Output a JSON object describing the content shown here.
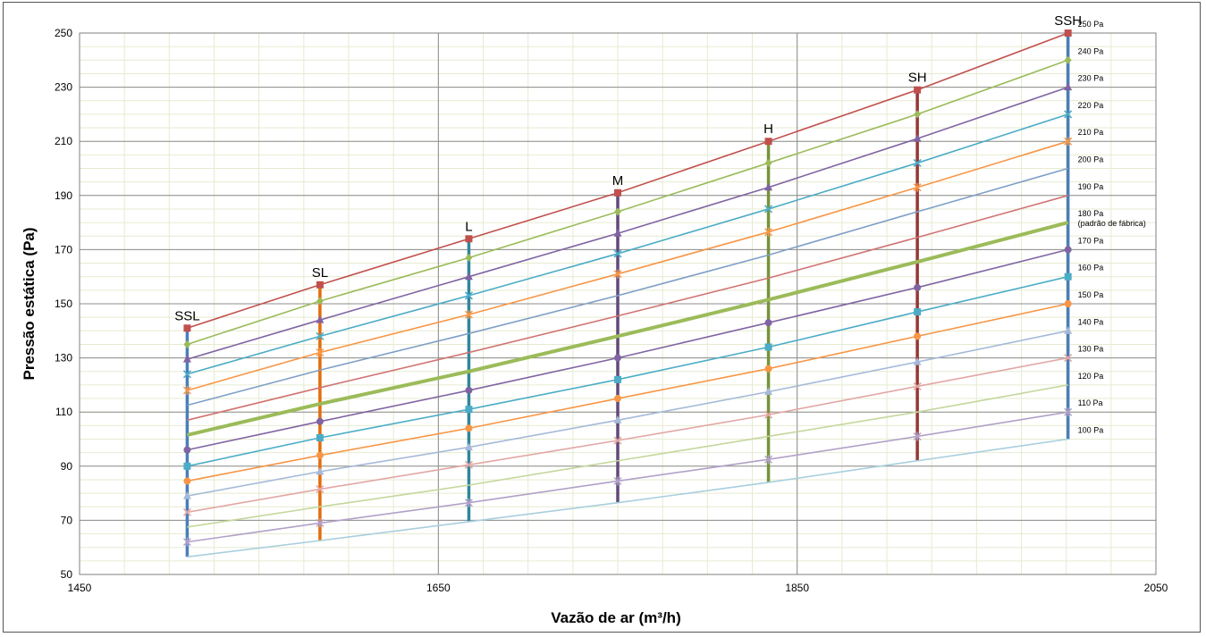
{
  "chart_data": {
    "type": "line",
    "xlabel": "Vazão de ar (m³/h)",
    "ylabel": "Pressão estática (Pa)",
    "xlim": [
      1450,
      2050
    ],
    "ylim": [
      50,
      250
    ],
    "x_ticks": [
      "1450",
      "1650",
      "1850",
      "2050"
    ],
    "y_ticks": [
      "50",
      "70",
      "90",
      "110",
      "130",
      "150",
      "170",
      "190",
      "210",
      "230",
      "250"
    ],
    "grid": true,
    "speed_steps": [
      {
        "name": "SSL",
        "x": 1510,
        "color": "#4a7ebb",
        "show_label": true
      },
      {
        "name": "SL",
        "x": 1584,
        "color": "#e46c0a",
        "show_label": true
      },
      {
        "name": "L",
        "x": 1667,
        "color": "#31859c",
        "show_label": true
      },
      {
        "name": "M",
        "x": 1750,
        "color": "#604a7b",
        "show_label": true
      },
      {
        "name": "H",
        "x": 1834,
        "color": "#77933c",
        "show_label": true
      },
      {
        "name": "SH",
        "x": 1917,
        "color": "#953735",
        "show_label": true
      },
      {
        "name": "SSH",
        "x": 2001,
        "color": "#4a7ebb",
        "show_label": true
      }
    ],
    "series": [
      {
        "name": "250 Pa",
        "color": "#c0504d",
        "marker": "square",
        "width": 1.6,
        "y": [
          141,
          157,
          174,
          191,
          210,
          229,
          250
        ]
      },
      {
        "name": "240 Pa",
        "color": "#9bbb59",
        "marker": "diamond",
        "width": 1.6,
        "y": [
          135,
          151,
          167,
          184,
          202,
          220,
          240
        ]
      },
      {
        "name": "230 Pa",
        "color": "#8064a2",
        "marker": "triangle",
        "width": 1.6,
        "y": [
          129.5,
          144,
          160,
          176,
          193,
          211,
          230
        ]
      },
      {
        "name": "220 Pa",
        "color": "#4bacc6",
        "marker": "x",
        "width": 1.6,
        "y": [
          124,
          138,
          153,
          168.5,
          185,
          202,
          220
        ]
      },
      {
        "name": "210 Pa",
        "color": "#f79646",
        "marker": "star",
        "width": 1.6,
        "y": [
          118,
          132,
          146,
          161,
          176.5,
          193,
          210
        ]
      },
      {
        "name": "200 Pa",
        "color": "#7f9fc6",
        "marker": "none",
        "width": 1.6,
        "y": [
          112.5,
          125.5,
          139,
          153,
          168,
          184,
          200
        ]
      },
      {
        "name": "190 Pa",
        "color": "#d07472",
        "marker": "none",
        "width": 1.6,
        "y": [
          107,
          119,
          132,
          145.5,
          159.5,
          174.5,
          190
        ]
      },
      {
        "name": "180 Pa",
        "name2": "(padrão de fábrica)",
        "color": "#9bbb59",
        "marker": "none",
        "width": 4,
        "y": [
          101.5,
          113,
          125,
          138,
          151.5,
          165.5,
          180
        ]
      },
      {
        "name": "170 Pa",
        "color": "#8064a2",
        "marker": "circle",
        "width": 1.6,
        "y": [
          96,
          106.5,
          118,
          130,
          143,
          156,
          170
        ]
      },
      {
        "name": "160 Pa",
        "color": "#4bacc6",
        "marker": "square",
        "width": 1.6,
        "y": [
          90,
          100.5,
          111,
          122,
          134,
          147,
          160
        ]
      },
      {
        "name": "150 Pa",
        "color": "#f79646",
        "marker": "circle",
        "width": 1.6,
        "y": [
          84.5,
          94,
          104,
          115,
          126,
          138,
          150
        ]
      },
      {
        "name": "140 Pa",
        "color": "#a5b9d8",
        "marker": "triangle",
        "width": 1.6,
        "y": [
          79,
          88,
          97,
          107,
          117.5,
          128.5,
          140
        ]
      },
      {
        "name": "130 Pa",
        "color": "#e2a6a5",
        "marker": "x",
        "width": 1.6,
        "y": [
          73,
          81.5,
          90.5,
          99.5,
          109,
          119.5,
          130
        ]
      },
      {
        "name": "120 Pa",
        "color": "#c4d79b",
        "marker": "none",
        "width": 1.6,
        "y": [
          67.5,
          75,
          83,
          92,
          101,
          110,
          120
        ]
      },
      {
        "name": "110 Pa",
        "color": "#b1a0c7",
        "marker": "star",
        "width": 1.6,
        "y": [
          62,
          69,
          76.5,
          84.5,
          92.5,
          101,
          110
        ]
      },
      {
        "name": "100 Pa",
        "color": "#a8cfde",
        "marker": "none",
        "width": 1.6,
        "y": [
          56.5,
          62.5,
          69.5,
          76.5,
          84,
          92,
          100
        ]
      }
    ]
  }
}
